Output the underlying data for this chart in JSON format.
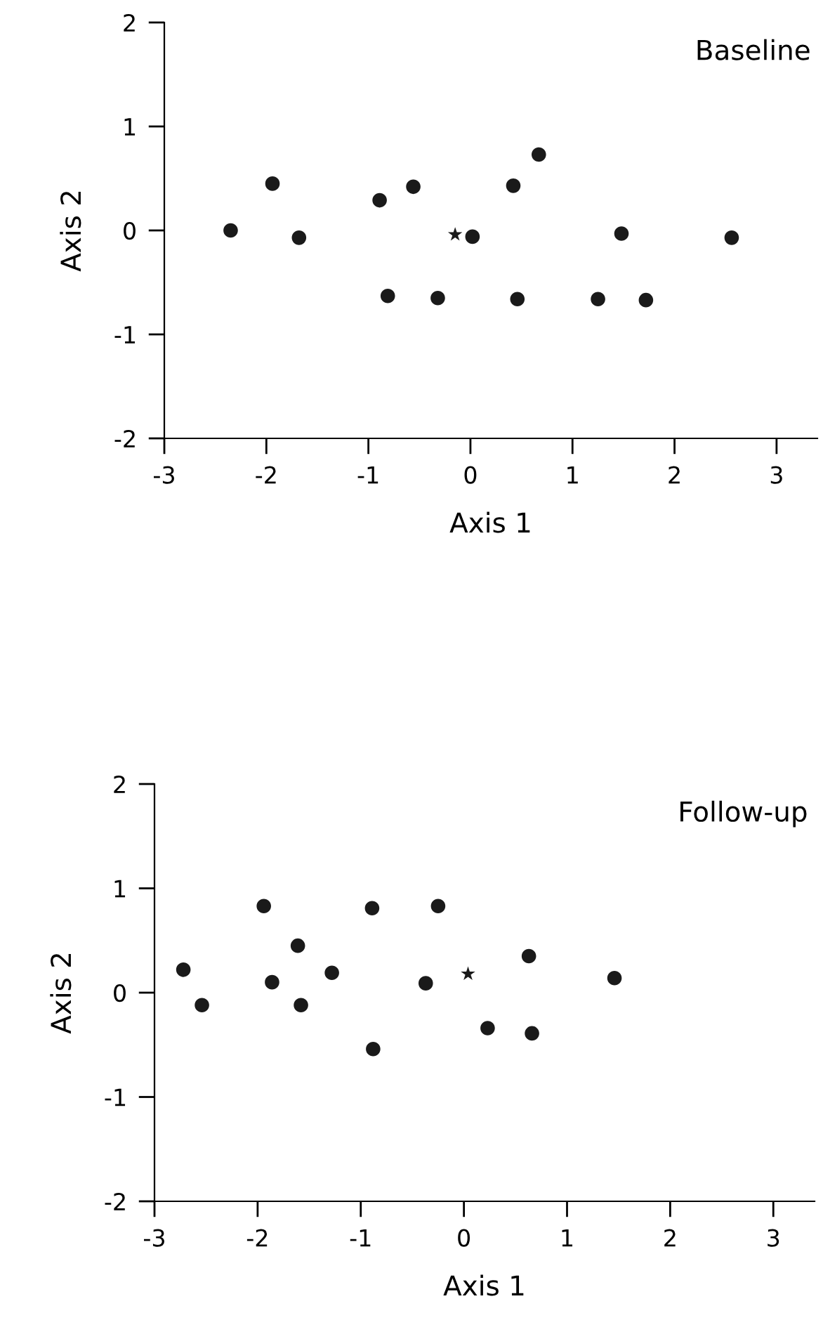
{
  "chart_data": [
    {
      "type": "scatter",
      "title": "Baseline",
      "xlabel": "Axis 1",
      "ylabel": "Axis 2",
      "xlim": [
        -3,
        3.4
      ],
      "ylim": [
        -2,
        2
      ],
      "xticks": [
        -3,
        -2,
        -1,
        0,
        1,
        2,
        3
      ],
      "yticks": [
        -2,
        -1,
        0,
        1,
        2
      ],
      "grid": false,
      "legend": false,
      "series": [
        {
          "color": "#1a1a1a",
          "marker": "circle",
          "x": [
            -2.35,
            -1.94,
            -1.68,
            -0.89,
            -0.81,
            -0.56,
            -0.32,
            0.02,
            0.42,
            0.46,
            0.67,
            1.25,
            1.48,
            1.72,
            2.56
          ],
          "values": [
            0.0,
            0.45,
            -0.07,
            0.29,
            -0.63,
            0.42,
            -0.65,
            -0.06,
            0.43,
            -0.66,
            0.73,
            -0.66,
            -0.03,
            -0.67,
            -0.07
          ]
        },
        {
          "color": "#1a1a1a",
          "marker": "star",
          "x": [
            -0.15
          ],
          "values": [
            -0.04
          ]
        }
      ]
    },
    {
      "type": "scatter",
      "title": "Follow-up",
      "xlabel": "Axis 1",
      "ylabel": "Axis 2",
      "xlim": [
        -3,
        3.4
      ],
      "ylim": [
        -2,
        2
      ],
      "xticks": [
        -3,
        -2,
        -1,
        0,
        1,
        2,
        3
      ],
      "yticks": [
        -2,
        -1,
        0,
        1,
        2
      ],
      "grid": false,
      "legend": false,
      "series": [
        {
          "color": "#1a1a1a",
          "marker": "circle",
          "x": [
            -2.72,
            -2.54,
            -1.94,
            -1.86,
            -1.61,
            -1.58,
            -1.28,
            -0.89,
            -0.88,
            -0.37,
            -0.25,
            0.23,
            0.63,
            0.66,
            1.46
          ],
          "values": [
            0.22,
            -0.12,
            0.83,
            0.1,
            0.45,
            -0.12,
            0.19,
            0.81,
            -0.54,
            0.09,
            0.83,
            -0.34,
            0.35,
            -0.39,
            0.14
          ]
        },
        {
          "color": "#1a1a1a",
          "marker": "star",
          "x": [
            0.04
          ],
          "values": [
            0.18
          ]
        }
      ]
    }
  ]
}
